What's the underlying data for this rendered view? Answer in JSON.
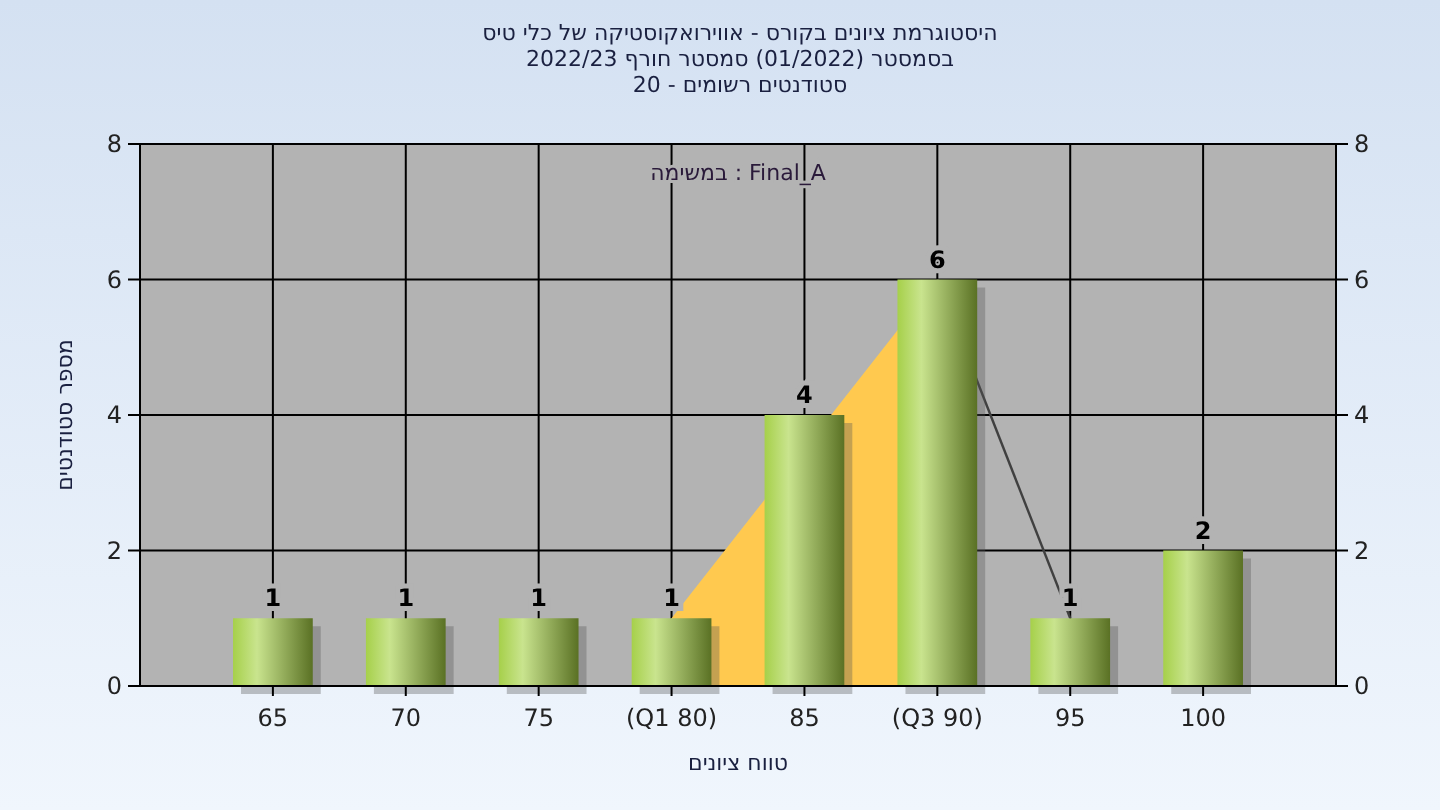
{
  "chart_data": {
    "type": "bar",
    "title": "היסטוגרמת ציונים בקורס - אווירואקוסטיקה של כלי טיס",
    "subtitle": "בסמסטר  (01/2022)  סמסטר חורף 2022/23\nסטודנטים רשומים - 20",
    "xlabel": "טווח ציונים",
    "ylabel": "מספר סטודנטים",
    "annotations": [
      "במשימה : Final_A"
    ],
    "categories": [
      "65",
      "70",
      "75",
      "(Q1 80)",
      "85",
      "(Q3 90)",
      "95",
      "100"
    ],
    "series": [
      {
        "type": "area",
        "color": "#ffc94f",
        "values": [
          null,
          null,
          null,
          1,
          null,
          6,
          null,
          null
        ]
      },
      {
        "type": "line",
        "color": "#404040",
        "values": [
          null,
          null,
          null,
          null,
          null,
          6,
          1,
          null
        ]
      },
      {
        "color": "#8fb33a",
        "values": [
          1,
          1,
          1,
          1,
          4,
          6,
          1,
          2
        ],
        "value_labels": [
          "1",
          "1",
          "1",
          "1",
          "4",
          "6",
          "1",
          "2"
        ]
      }
    ],
    "ylim": [
      0,
      8
    ],
    "yticks": [
      0,
      2,
      4,
      6,
      8
    ],
    "y2lim": [
      0,
      8
    ],
    "y2ticks": [
      0,
      2,
      4,
      6,
      8
    ],
    "grid": true
  }
}
